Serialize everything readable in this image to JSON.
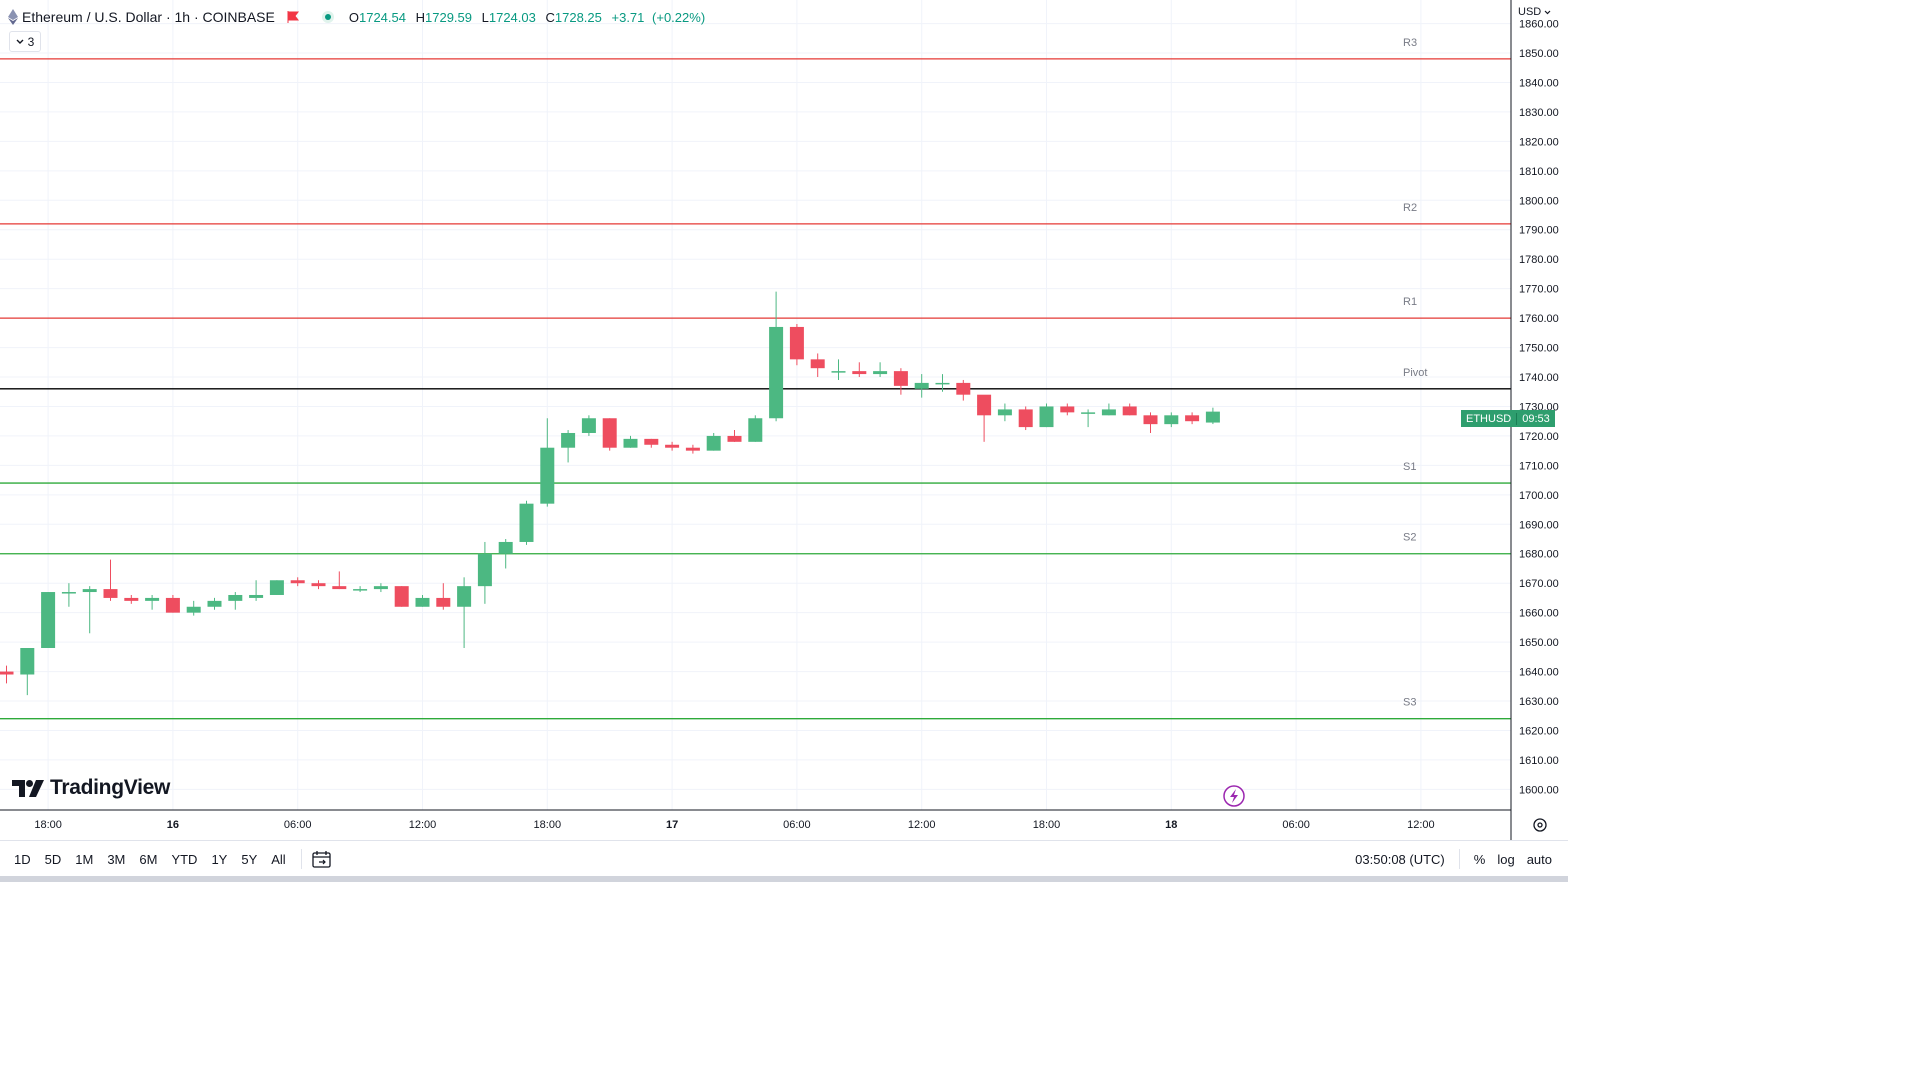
{
  "header": {
    "title": "Ethereum / U.S. Dollar · 1h · COINBASE",
    "ohlc": {
      "open_label": "O",
      "open": "1724.54",
      "high_label": "H",
      "high": "1729.59",
      "low_label": "L",
      "low": "1724.03",
      "close_label": "C",
      "close": "1728.25",
      "change": "+3.71",
      "change_pct": "(+0.22%)"
    },
    "indicator_count": "3"
  },
  "price_scale": {
    "currency": "USD"
  },
  "price_tag": {
    "symbol": "ETHUSD",
    "countdown": "09:53"
  },
  "logo": {
    "text": "TradingView"
  },
  "bottom_bar": {
    "ranges": [
      "1D",
      "5D",
      "1M",
      "3M",
      "6M",
      "YTD",
      "1Y",
      "5Y",
      "All"
    ],
    "time": "03:50:08 (UTC)",
    "percent": "%",
    "log": "log",
    "auto": "auto"
  },
  "colors": {
    "up": "#4cb882",
    "down": "#ee4d5f",
    "resistance": "#e53935",
    "support": "#2eaa3a",
    "pivot": "#000000"
  },
  "chart_data": {
    "type": "candlestick",
    "ylim": [
      1593,
      1868
    ],
    "y_ticks": [
      1600,
      1610,
      1620,
      1630,
      1640,
      1650,
      1660,
      1670,
      1680,
      1690,
      1700,
      1710,
      1720,
      1730,
      1740,
      1750,
      1760,
      1770,
      1780,
      1790,
      1800,
      1810,
      1820,
      1830,
      1840,
      1850,
      1860
    ],
    "x_ticks": [
      {
        "i": 2,
        "label": "18:00"
      },
      {
        "i": 8,
        "label": "16"
      },
      {
        "i": 14,
        "label": "06:00"
      },
      {
        "i": 20,
        "label": "12:00"
      },
      {
        "i": 26,
        "label": "18:00"
      },
      {
        "i": 32,
        "label": "17"
      },
      {
        "i": 38,
        "label": "06:00"
      },
      {
        "i": 44,
        "label": "12:00"
      },
      {
        "i": 50,
        "label": "18:00"
      },
      {
        "i": 56,
        "label": "18"
      },
      {
        "i": 62,
        "label": "06:00"
      },
      {
        "i": 68,
        "label": "12:00"
      }
    ],
    "levels": [
      {
        "name": "R3",
        "value": 1848,
        "kind": "resistance"
      },
      {
        "name": "R2",
        "value": 1792,
        "kind": "resistance"
      },
      {
        "name": "R1",
        "value": 1760,
        "kind": "resistance"
      },
      {
        "name": "Pivot",
        "value": 1736,
        "kind": "pivot"
      },
      {
        "name": "S1",
        "value": 1704,
        "kind": "support"
      },
      {
        "name": "S2",
        "value": 1680,
        "kind": "support"
      },
      {
        "name": "S3",
        "value": 1624,
        "kind": "support"
      }
    ],
    "candles": [
      [
        1640,
        1642,
        1636,
        1639
      ],
      [
        1639,
        1648,
        1632,
        1648
      ],
      [
        1648,
        1667,
        1648,
        1667
      ],
      [
        1667,
        1670,
        1662,
        1667
      ],
      [
        1667,
        1669,
        1653,
        1668
      ],
      [
        1668,
        1678,
        1664,
        1665
      ],
      [
        1665,
        1666,
        1663,
        1664
      ],
      [
        1664,
        1666,
        1661,
        1665
      ],
      [
        1665,
        1666,
        1660,
        1660
      ],
      [
        1660,
        1664,
        1659,
        1662
      ],
      [
        1662,
        1665,
        1661,
        1664
      ],
      [
        1664,
        1667,
        1661,
        1666
      ],
      [
        1665,
        1671,
        1664,
        1666
      ],
      [
        1666,
        1671,
        1666,
        1671
      ],
      [
        1671,
        1672,
        1669,
        1670
      ],
      [
        1670,
        1671,
        1668,
        1669
      ],
      [
        1669,
        1674,
        1668,
        1668
      ],
      [
        1668,
        1669,
        1667,
        1668
      ],
      [
        1668,
        1670,
        1667,
        1669
      ],
      [
        1669,
        1669,
        1662,
        1662
      ],
      [
        1662,
        1666,
        1662,
        1665
      ],
      [
        1665,
        1670,
        1661,
        1662
      ],
      [
        1662,
        1672,
        1648,
        1669
      ],
      [
        1669,
        1684,
        1663,
        1680
      ],
      [
        1680,
        1685,
        1675,
        1684
      ],
      [
        1684,
        1698,
        1683,
        1697
      ],
      [
        1697,
        1726,
        1696,
        1716
      ],
      [
        1716,
        1722,
        1711,
        1721
      ],
      [
        1721,
        1727,
        1720,
        1726
      ],
      [
        1726,
        1726,
        1715,
        1716
      ],
      [
        1716,
        1720,
        1716,
        1719
      ],
      [
        1719,
        1719,
        1716,
        1717
      ],
      [
        1717,
        1718,
        1715,
        1716
      ],
      [
        1716,
        1717,
        1714,
        1715
      ],
      [
        1715,
        1721,
        1715,
        1720
      ],
      [
        1720,
        1722,
        1718,
        1718
      ],
      [
        1718,
        1727,
        1718,
        1726
      ],
      [
        1726,
        1769,
        1725,
        1757
      ],
      [
        1757,
        1758,
        1744,
        1746
      ],
      [
        1746,
        1748,
        1740,
        1743
      ],
      [
        1742,
        1746,
        1739,
        1742
      ],
      [
        1742,
        1745,
        1740,
        1741
      ],
      [
        1741,
        1745,
        1740,
        1742
      ],
      [
        1742,
        1743,
        1734,
        1737
      ],
      [
        1736,
        1741,
        1733,
        1738
      ],
      [
        1738,
        1741,
        1735,
        1738
      ],
      [
        1738,
        1739,
        1732,
        1734
      ],
      [
        1734,
        1733,
        1718,
        1727
      ],
      [
        1727,
        1731,
        1725,
        1729
      ],
      [
        1729,
        1730,
        1722,
        1723
      ],
      [
        1723,
        1731,
        1723,
        1730
      ],
      [
        1730,
        1731,
        1727,
        1728
      ],
      [
        1728,
        1729,
        1723,
        1728
      ],
      [
        1727,
        1731,
        1727,
        1729
      ],
      [
        1730,
        1731,
        1727,
        1727
      ],
      [
        1727,
        1728,
        1721,
        1724
      ],
      [
        1724,
        1728,
        1723,
        1727
      ],
      [
        1727,
        1728,
        1724,
        1725
      ],
      [
        1724.54,
        1729.59,
        1724.03,
        1728.25
      ]
    ]
  }
}
